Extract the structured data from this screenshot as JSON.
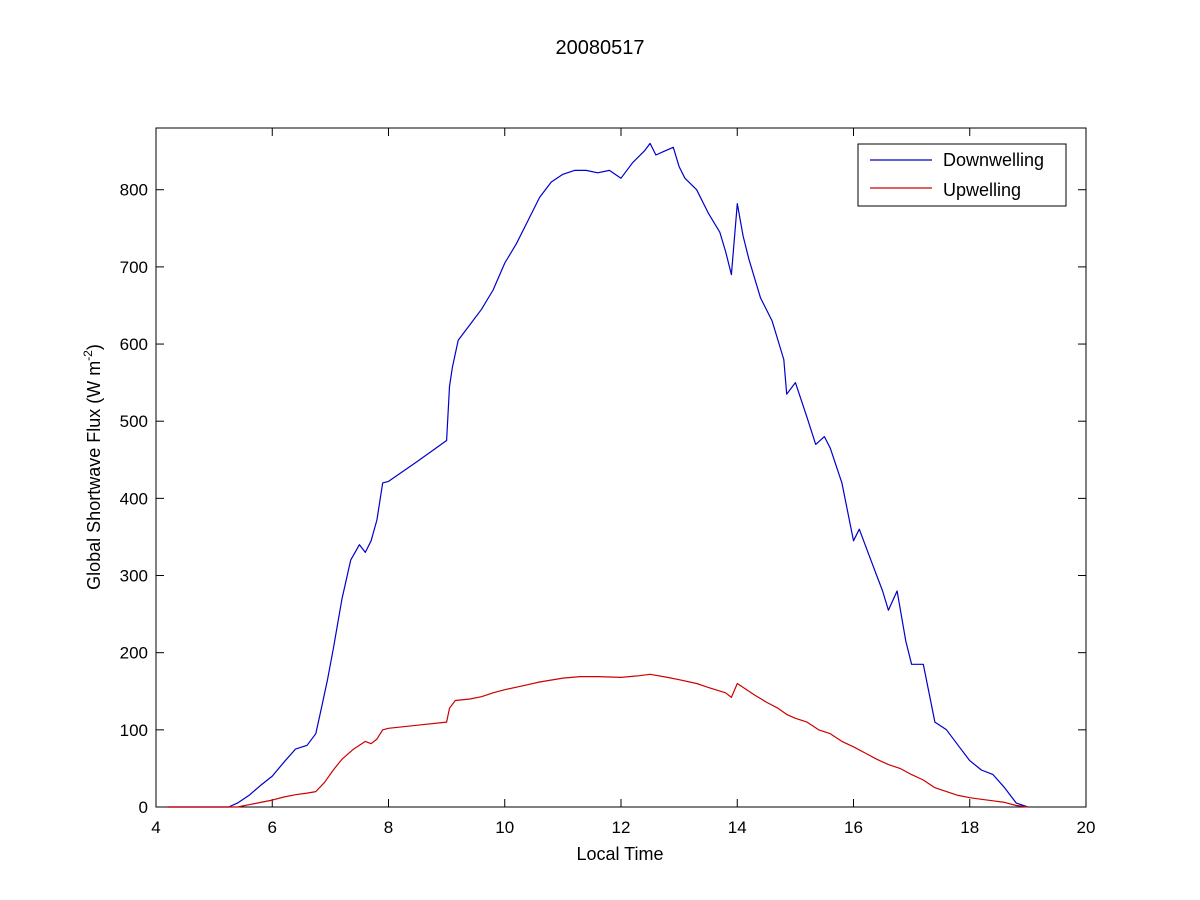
{
  "chart_data": {
    "type": "line",
    "title": "20080517",
    "xlabel": "Local Time",
    "ylabel": "Global Shortwave Flux (W m^-2)",
    "ylabel_parts": {
      "main": "Global Shortwave Flux (W m",
      "sup": "-2",
      "close": ")"
    },
    "xlim": [
      4,
      20
    ],
    "ylim": [
      0,
      880
    ],
    "x_ticks": [
      4,
      6,
      8,
      10,
      12,
      14,
      16,
      18,
      20
    ],
    "y_ticks": [
      0,
      100,
      200,
      300,
      400,
      500,
      600,
      700,
      800
    ],
    "grid": false,
    "legend_position": "top-right",
    "series": [
      {
        "name": "Downwelling",
        "color": "#0000cc",
        "x": [
          4.2,
          4.4,
          4.5,
          5.0,
          5.25,
          5.4,
          5.6,
          5.8,
          6.0,
          6.2,
          6.4,
          6.6,
          6.75,
          6.85,
          6.95,
          7.05,
          7.2,
          7.35,
          7.5,
          7.6,
          7.7,
          7.8,
          7.9,
          8.0,
          8.5,
          9.0,
          9.05,
          9.1,
          9.2,
          9.4,
          9.6,
          9.8,
          10.0,
          10.2,
          10.4,
          10.6,
          10.8,
          11.0,
          11.2,
          11.4,
          11.6,
          11.8,
          12.0,
          12.2,
          12.4,
          12.5,
          12.6,
          12.75,
          12.9,
          13.0,
          13.1,
          13.3,
          13.5,
          13.7,
          13.8,
          13.9,
          14.0,
          14.1,
          14.2,
          14.4,
          14.6,
          14.8,
          14.85,
          15.0,
          15.2,
          15.35,
          15.5,
          15.6,
          15.8,
          16.0,
          16.1,
          16.25,
          16.4,
          16.5,
          16.6,
          16.75,
          16.9,
          17.0,
          17.2,
          17.4,
          17.6,
          17.8,
          18.0,
          18.2,
          18.4,
          18.6,
          18.8,
          19.0
        ],
        "y": [
          0,
          0,
          0,
          0,
          0,
          5,
          15,
          28,
          40,
          58,
          75,
          80,
          95,
          130,
          165,
          205,
          270,
          320,
          340,
          330,
          345,
          372,
          420,
          422,
          448,
          475,
          545,
          570,
          605,
          625,
          645,
          670,
          705,
          730,
          760,
          790,
          810,
          820,
          825,
          825,
          822,
          825,
          815,
          835,
          850,
          860,
          845,
          850,
          855,
          830,
          815,
          800,
          770,
          745,
          720,
          690,
          782,
          740,
          710,
          660,
          630,
          580,
          535,
          550,
          505,
          470,
          480,
          465,
          420,
          345,
          360,
          330,
          300,
          280,
          255,
          280,
          215,
          185,
          185,
          110,
          100,
          80,
          60,
          48,
          42,
          25,
          5,
          0
        ]
      },
      {
        "name": "Upwelling",
        "color": "#cc0000",
        "x": [
          4.2,
          4.4,
          4.5,
          5.0,
          5.2,
          5.4,
          5.6,
          5.8,
          6.0,
          6.2,
          6.4,
          6.6,
          6.75,
          6.9,
          7.05,
          7.2,
          7.4,
          7.6,
          7.7,
          7.8,
          7.9,
          8.0,
          8.5,
          9.0,
          9.05,
          9.15,
          9.4,
          9.6,
          9.8,
          10.0,
          10.3,
          10.6,
          11.0,
          11.3,
          11.6,
          12.0,
          12.3,
          12.5,
          12.8,
          13.0,
          13.3,
          13.5,
          13.8,
          13.9,
          14.0,
          14.1,
          14.3,
          14.5,
          14.7,
          14.85,
          15.0,
          15.2,
          15.4,
          15.6,
          15.8,
          16.0,
          16.2,
          16.4,
          16.6,
          16.8,
          17.0,
          17.2,
          17.4,
          17.6,
          17.8,
          18.0,
          18.2,
          18.4,
          18.6,
          18.8,
          19.0
        ],
        "y": [
          0,
          0,
          0,
          0,
          0,
          0,
          3,
          6,
          9,
          13,
          16,
          18,
          20,
          32,
          48,
          62,
          75,
          85,
          82,
          88,
          100,
          102,
          106,
          110,
          128,
          138,
          140,
          143,
          148,
          152,
          157,
          162,
          167,
          169,
          169,
          168,
          170,
          172,
          168,
          165,
          160,
          155,
          148,
          142,
          160,
          155,
          145,
          136,
          128,
          120,
          115,
          110,
          100,
          95,
          85,
          78,
          70,
          62,
          55,
          50,
          42,
          35,
          25,
          20,
          15,
          12,
          10,
          8,
          6,
          2,
          0
        ]
      }
    ]
  }
}
